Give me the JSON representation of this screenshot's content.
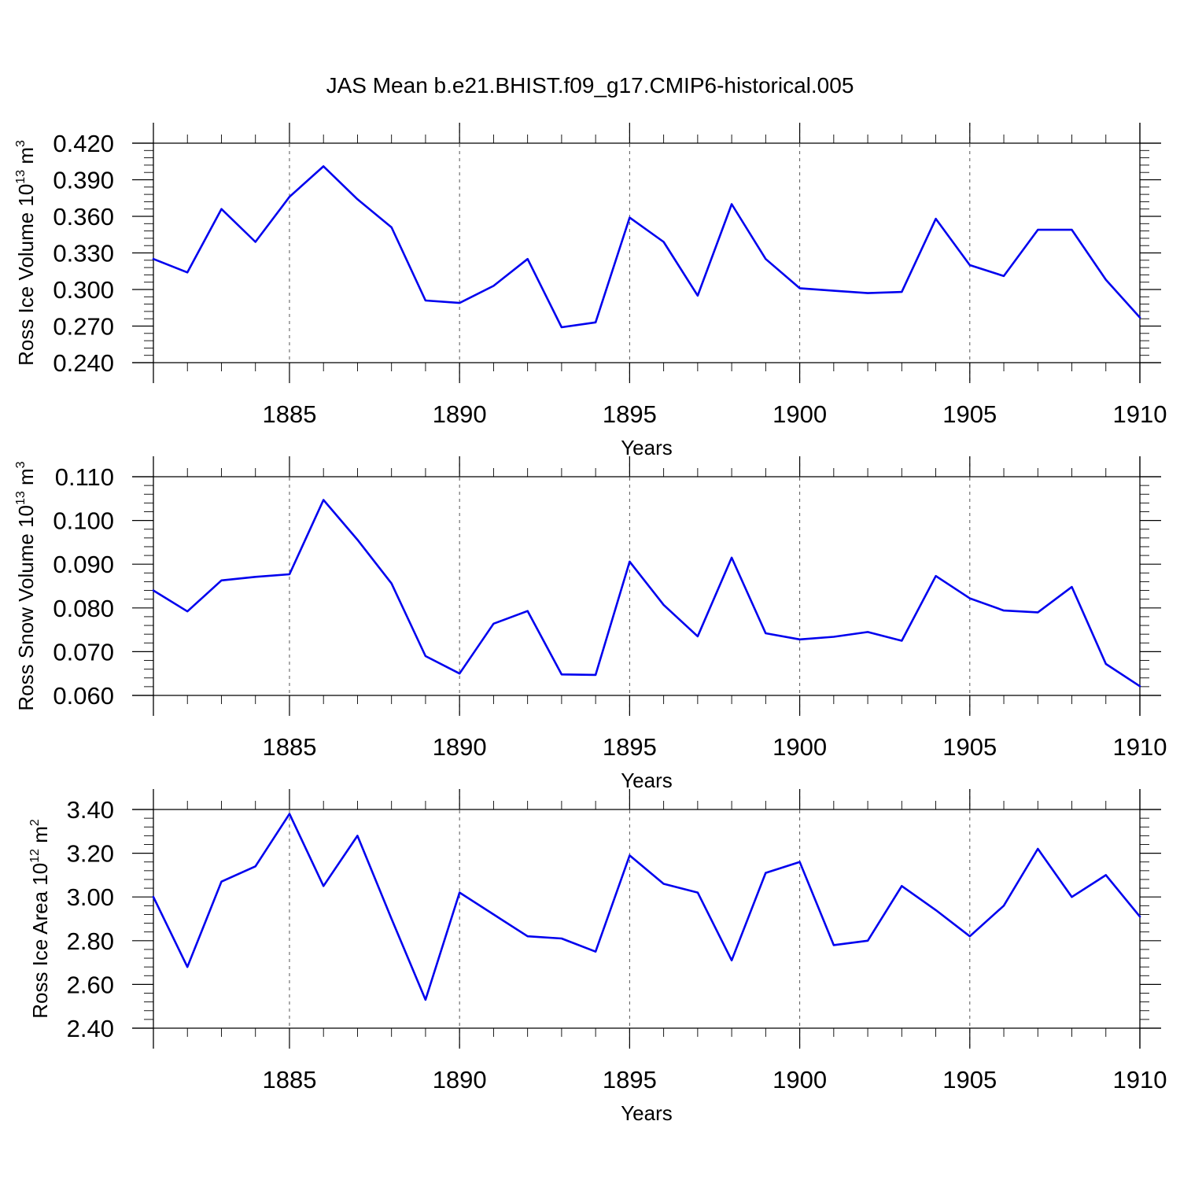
{
  "figure": {
    "title": "JAS Mean b.e21.BHIST.f09_g17.CMIP6-historical.005"
  },
  "chart_data": [
    {
      "type": "line",
      "xlabel": "Years",
      "ylabel": "Ross Ice Volume 10",
      "ylabel_exponent": "13",
      "ylabel_unit": " m",
      "ylabel_unit_exponent": "3",
      "xlim": [
        1881,
        1910
      ],
      "ylim": [
        0.24,
        0.42
      ],
      "x_ticks": [
        1885,
        1890,
        1895,
        1900,
        1905,
        1910
      ],
      "x_tick_labels": [
        "1885",
        "1890",
        "1895",
        "1900",
        "1905",
        "1910"
      ],
      "y_ticks": [
        0.24,
        0.27,
        0.3,
        0.33,
        0.36,
        0.39,
        0.42
      ],
      "y_tick_labels": [
        "0.240",
        "0.270",
        "0.300",
        "0.330",
        "0.360",
        "0.390",
        "0.420"
      ],
      "grid": "vertical dashed at major x ticks",
      "color": "#0000ee",
      "x": [
        1881,
        1882,
        1883,
        1884,
        1885,
        1886,
        1887,
        1888,
        1889,
        1890,
        1891,
        1892,
        1893,
        1894,
        1895,
        1896,
        1897,
        1898,
        1899,
        1900,
        1901,
        1902,
        1903,
        1904,
        1905,
        1906,
        1907,
        1908,
        1909,
        1910
      ],
      "y": [
        0.325,
        0.314,
        0.366,
        0.339,
        0.376,
        0.401,
        0.374,
        0.351,
        0.291,
        0.289,
        0.303,
        0.325,
        0.269,
        0.273,
        0.359,
        0.339,
        0.295,
        0.37,
        0.325,
        0.301,
        0.299,
        0.297,
        0.298,
        0.358,
        0.32,
        0.311,
        0.349,
        0.349,
        0.308,
        0.277
      ]
    },
    {
      "type": "line",
      "xlabel": "Years",
      "ylabel": "Ross Snow Volume 10",
      "ylabel_exponent": "13",
      "ylabel_unit": " m",
      "ylabel_unit_exponent": "3",
      "xlim": [
        1881,
        1910
      ],
      "ylim": [
        0.06,
        0.11
      ],
      "x_ticks": [
        1885,
        1890,
        1895,
        1900,
        1905,
        1910
      ],
      "x_tick_labels": [
        "1885",
        "1890",
        "1895",
        "1900",
        "1905",
        "1910"
      ],
      "y_ticks": [
        0.06,
        0.07,
        0.08,
        0.09,
        0.1,
        0.11
      ],
      "y_tick_labels": [
        "0.060",
        "0.070",
        "0.080",
        "0.090",
        "0.100",
        "0.110"
      ],
      "grid": "vertical dashed at major x ticks",
      "color": "#0000ee",
      "x": [
        1881,
        1882,
        1883,
        1884,
        1885,
        1886,
        1887,
        1888,
        1889,
        1890,
        1891,
        1892,
        1893,
        1894,
        1895,
        1896,
        1897,
        1898,
        1899,
        1900,
        1901,
        1902,
        1903,
        1904,
        1905,
        1906,
        1907,
        1908,
        1909,
        1910
      ],
      "y": [
        0.084,
        0.0792,
        0.0863,
        0.0871,
        0.0877,
        0.1047,
        0.0956,
        0.0856,
        0.069,
        0.065,
        0.0764,
        0.0793,
        0.0648,
        0.0647,
        0.0906,
        0.0807,
        0.0735,
        0.0915,
        0.0742,
        0.0728,
        0.0734,
        0.0745,
        0.0725,
        0.0873,
        0.0822,
        0.0794,
        0.079,
        0.0848,
        0.0672,
        0.0621
      ]
    },
    {
      "type": "line",
      "xlabel": "Years",
      "ylabel": "Ross Ice Area 10",
      "ylabel_exponent": "12",
      "ylabel_unit": " m",
      "ylabel_unit_exponent": "2",
      "xlim": [
        1881,
        1910
      ],
      "ylim": [
        2.4,
        3.4
      ],
      "x_ticks": [
        1885,
        1890,
        1895,
        1900,
        1905,
        1910
      ],
      "x_tick_labels": [
        "1885",
        "1890",
        "1895",
        "1900",
        "1905",
        "1910"
      ],
      "y_ticks": [
        2.4,
        2.6,
        2.8,
        3.0,
        3.2,
        3.4
      ],
      "y_tick_labels": [
        "2.40",
        "2.60",
        "2.80",
        "3.00",
        "3.20",
        "3.40"
      ],
      "grid": "vertical dashed at major x ticks",
      "color": "#0000ee",
      "x": [
        1881,
        1882,
        1883,
        1884,
        1885,
        1886,
        1887,
        1888,
        1889,
        1890,
        1891,
        1892,
        1893,
        1894,
        1895,
        1896,
        1897,
        1898,
        1899,
        1900,
        1901,
        1902,
        1903,
        1904,
        1905,
        1906,
        1907,
        1908,
        1909,
        1910
      ],
      "y": [
        3.0,
        2.68,
        3.07,
        3.14,
        3.38,
        3.05,
        3.28,
        2.9,
        2.53,
        3.02,
        2.92,
        2.82,
        2.81,
        2.75,
        3.19,
        3.06,
        3.02,
        2.71,
        3.11,
        3.16,
        2.78,
        2.8,
        3.05,
        2.94,
        2.82,
        2.96,
        3.22,
        3.0,
        3.1,
        2.91
      ]
    }
  ]
}
